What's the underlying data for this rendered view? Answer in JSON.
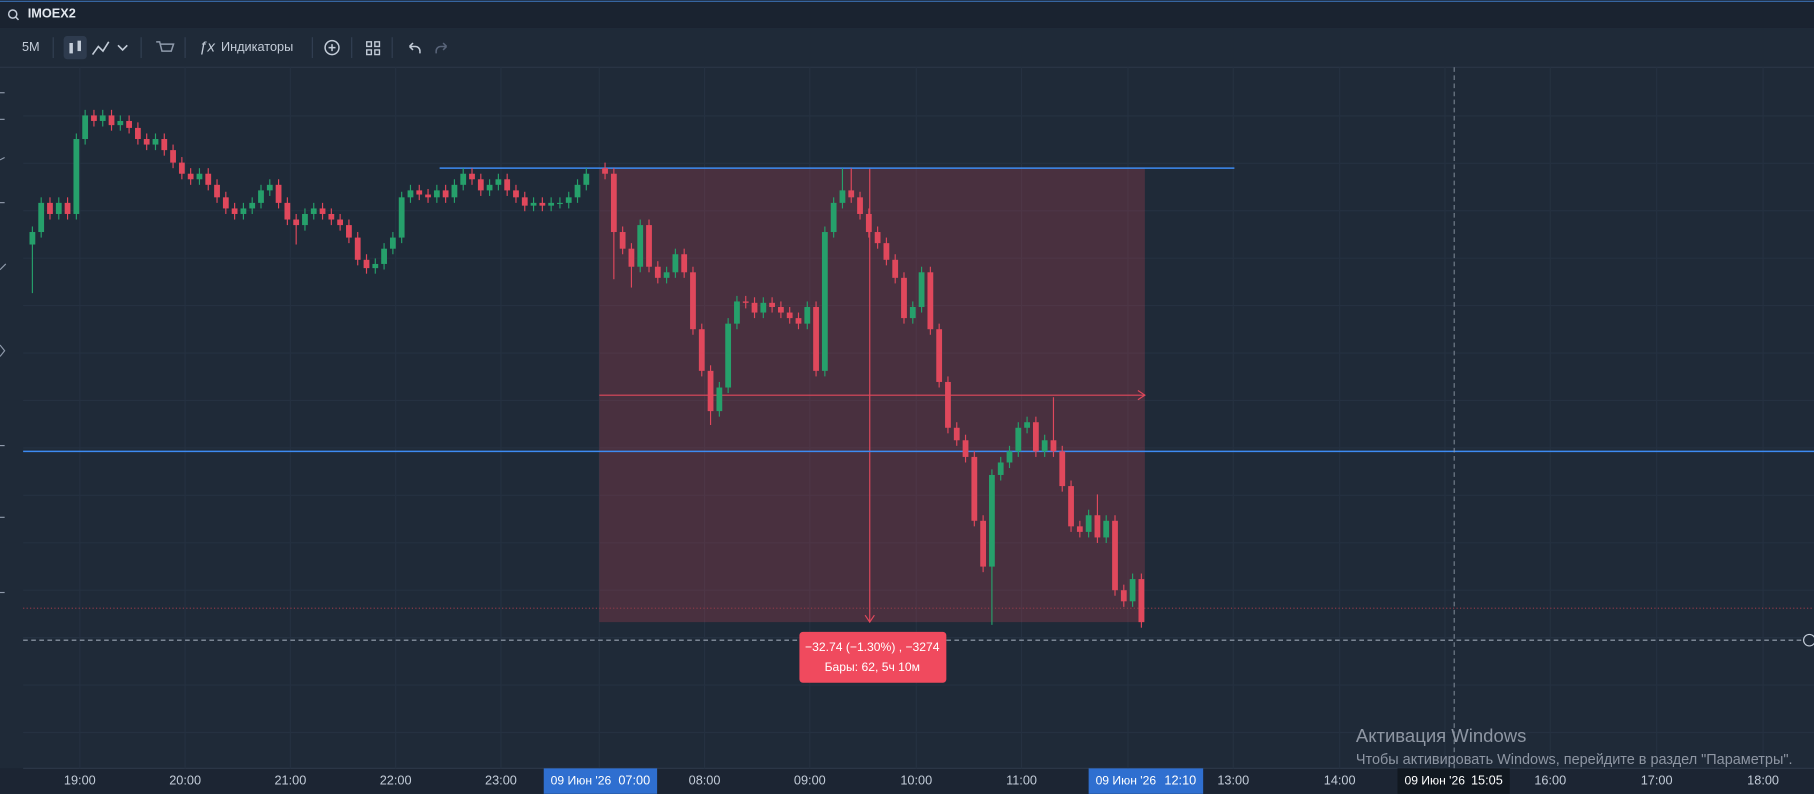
{
  "search": {
    "symbol": "IMOEX2"
  },
  "toolbar": {
    "interval": "5M",
    "indicators": "Индикаторы"
  },
  "chart_data": {
    "type": "candlestick",
    "up_color": "#26a06b",
    "down_color": "#e0485c",
    "sessions": [
      {
        "candles": [
          [
            2513.0,
            2514.3,
            2509.5,
            2513.9
          ],
          [
            2513.9,
            2516.4,
            2513.5,
            2516.0
          ],
          [
            2516.0,
            2516.4,
            2514.8,
            2515.2
          ],
          [
            2515.2,
            2516.4,
            2514.8,
            2516.0
          ],
          [
            2516.0,
            2516.4,
            2514.8,
            2515.2
          ],
          [
            2515.2,
            2521.0,
            2514.8,
            2520.6
          ],
          [
            2520.6,
            2522.7,
            2520.2,
            2522.3
          ],
          [
            2522.3,
            2522.7,
            2521.5,
            2521.9
          ],
          [
            2521.9,
            2522.7,
            2521.5,
            2522.3
          ],
          [
            2522.3,
            2522.7,
            2521.2,
            2521.6
          ],
          [
            2521.6,
            2522.3,
            2521.2,
            2521.9
          ],
          [
            2521.9,
            2522.3,
            2521.0,
            2521.4
          ],
          [
            2521.4,
            2521.8,
            2520.2,
            2520.6
          ],
          [
            2520.6,
            2521.0,
            2519.8,
            2520.2
          ],
          [
            2520.2,
            2521.0,
            2519.8,
            2520.6
          ],
          [
            2520.6,
            2521.0,
            2519.4,
            2519.8
          ],
          [
            2519.8,
            2520.2,
            2518.5,
            2518.9
          ],
          [
            2518.9,
            2519.3,
            2517.7,
            2518.1
          ],
          [
            2518.1,
            2518.5,
            2517.3,
            2517.7
          ],
          [
            2517.7,
            2518.5,
            2517.3,
            2518.1
          ],
          [
            2518.1,
            2518.5,
            2516.9,
            2517.3
          ],
          [
            2517.3,
            2517.7,
            2516.0,
            2516.4
          ],
          [
            2516.4,
            2516.8,
            2515.2,
            2515.6
          ],
          [
            2515.6,
            2516.0,
            2514.8,
            2515.2
          ],
          [
            2515.2,
            2516.0,
            2514.8,
            2515.6
          ],
          [
            2515.6,
            2516.4,
            2515.2,
            2516.0
          ],
          [
            2516.0,
            2517.3,
            2515.6,
            2516.9
          ],
          [
            2516.9,
            2517.7,
            2516.5,
            2517.3
          ],
          [
            2517.3,
            2517.7,
            2515.6,
            2516.0
          ],
          [
            2516.0,
            2516.4,
            2514.4,
            2514.8
          ],
          [
            2514.8,
            2515.2,
            2513.0,
            2514.4
          ],
          [
            2514.4,
            2515.6,
            2514.0,
            2515.2
          ],
          [
            2515.2,
            2516.0,
            2514.8,
            2515.6
          ],
          [
            2515.6,
            2516.0,
            2514.8,
            2515.2
          ],
          [
            2515.2,
            2515.6,
            2514.4,
            2514.8
          ],
          [
            2514.8,
            2515.2,
            2514.0,
            2514.4
          ],
          [
            2514.4,
            2514.8,
            2513.1,
            2513.5
          ],
          [
            2513.5,
            2513.9,
            2511.5,
            2511.9
          ],
          [
            2511.9,
            2512.3,
            2510.9,
            2511.3
          ],
          [
            2511.3,
            2512.0,
            2510.9,
            2511.6
          ],
          [
            2511.6,
            2513.1,
            2511.2,
            2512.7
          ],
          [
            2512.7,
            2513.9,
            2512.3,
            2513.5
          ],
          [
            2513.5,
            2516.8,
            2513.1,
            2516.4
          ],
          [
            2516.4,
            2517.3,
            2516.0,
            2516.9
          ],
          [
            2516.9,
            2517.3,
            2516.2,
            2516.6
          ],
          [
            2516.6,
            2517.0,
            2516.0,
            2516.4
          ],
          [
            2516.4,
            2517.3,
            2516.0,
            2516.9
          ],
          [
            2516.9,
            2517.3,
            2516.0,
            2516.4
          ],
          [
            2516.4,
            2517.7,
            2516.0,
            2517.3
          ],
          [
            2517.3,
            2518.5,
            2516.9,
            2518.1
          ],
          [
            2518.1,
            2518.5,
            2517.3,
            2517.7
          ],
          [
            2517.7,
            2518.1,
            2516.5,
            2516.9
          ],
          [
            2516.9,
            2517.7,
            2516.5,
            2517.3
          ],
          [
            2517.3,
            2518.1,
            2516.9,
            2517.7
          ],
          [
            2517.7,
            2518.1,
            2516.5,
            2516.9
          ],
          [
            2516.9,
            2517.3,
            2516.0,
            2516.4
          ],
          [
            2516.4,
            2516.8,
            2515.4,
            2515.8
          ],
          [
            2515.8,
            2516.4,
            2515.4,
            2516.0
          ],
          [
            2516.0,
            2516.4,
            2515.4,
            2515.8
          ],
          [
            2515.8,
            2516.4,
            2515.4,
            2516.0
          ],
          [
            2516.0,
            2516.4,
            2515.6,
            2516.0
          ],
          [
            2516.0,
            2516.8,
            2515.6,
            2516.4
          ],
          [
            2516.4,
            2517.7,
            2516.0,
            2517.3
          ],
          [
            2517.3,
            2518.5,
            2516.9,
            2518.1
          ]
        ]
      },
      {
        "candles": [
          [
            2518.5,
            2518.9,
            2517.7,
            2518.1
          ],
          [
            2518.1,
            2518.5,
            2510.5,
            2513.9
          ],
          [
            2513.9,
            2514.3,
            2512.3,
            2512.7
          ],
          [
            2512.7,
            2513.1,
            2509.9,
            2511.4
          ],
          [
            2511.4,
            2514.8,
            2511.0,
            2514.4
          ],
          [
            2514.4,
            2514.8,
            2511.0,
            2511.4
          ],
          [
            2511.4,
            2511.8,
            2510.2,
            2510.6
          ],
          [
            2510.6,
            2511.4,
            2510.2,
            2511.0
          ],
          [
            2511.0,
            2512.7,
            2510.6,
            2512.3
          ],
          [
            2512.3,
            2512.7,
            2510.6,
            2511.0
          ],
          [
            2511.0,
            2511.4,
            2506.5,
            2506.9
          ],
          [
            2506.9,
            2507.3,
            2503.5,
            2503.9
          ],
          [
            2503.9,
            2504.3,
            2500.0,
            2501.0
          ],
          [
            2501.0,
            2503.1,
            2500.6,
            2502.7
          ],
          [
            2502.7,
            2507.7,
            2502.3,
            2507.3
          ],
          [
            2507.3,
            2509.3,
            2506.9,
            2508.9
          ],
          [
            2508.9,
            2509.3,
            2508.4,
            2508.8
          ],
          [
            2508.8,
            2509.2,
            2507.7,
            2508.1
          ],
          [
            2508.1,
            2509.2,
            2507.7,
            2508.8
          ],
          [
            2508.8,
            2509.2,
            2508.1,
            2508.5
          ],
          [
            2508.5,
            2508.9,
            2507.7,
            2508.1
          ],
          [
            2508.1,
            2508.5,
            2507.3,
            2507.7
          ],
          [
            2507.7,
            2508.1,
            2506.9,
            2507.3
          ],
          [
            2507.3,
            2508.9,
            2506.9,
            2508.5
          ],
          [
            2508.5,
            2508.9,
            2503.5,
            2503.9
          ],
          [
            2503.9,
            2514.3,
            2503.5,
            2513.9
          ],
          [
            2513.9,
            2516.4,
            2513.5,
            2516.0
          ],
          [
            2516.0,
            2518.5,
            2515.6,
            2516.9
          ],
          [
            2516.9,
            2518.5,
            2516.0,
            2516.4
          ],
          [
            2516.4,
            2516.8,
            2514.8,
            2515.2
          ],
          [
            2515.2,
            2515.6,
            2513.5,
            2513.9
          ],
          [
            2513.9,
            2514.3,
            2512.7,
            2513.1
          ],
          [
            2513.1,
            2513.5,
            2511.5,
            2511.9
          ],
          [
            2511.9,
            2512.3,
            2510.2,
            2510.6
          ],
          [
            2510.6,
            2511.0,
            2507.3,
            2507.7
          ],
          [
            2507.7,
            2508.9,
            2507.3,
            2508.5
          ],
          [
            2508.5,
            2511.4,
            2508.1,
            2511.0
          ],
          [
            2511.0,
            2511.4,
            2506.5,
            2506.9
          ],
          [
            2506.9,
            2507.3,
            2502.7,
            2503.1
          ],
          [
            2503.1,
            2503.5,
            2499.4,
            2499.8
          ],
          [
            2499.8,
            2500.2,
            2498.5,
            2498.9
          ],
          [
            2498.9,
            2499.3,
            2497.3,
            2497.7
          ],
          [
            2497.7,
            2498.1,
            2492.7,
            2493.1
          ],
          [
            2493.1,
            2493.5,
            2489.4,
            2489.8
          ],
          [
            2489.8,
            2496.8,
            2485.6,
            2496.4
          ],
          [
            2496.4,
            2497.7,
            2496.0,
            2497.3
          ],
          [
            2497.3,
            2498.5,
            2496.9,
            2498.1
          ],
          [
            2498.1,
            2500.2,
            2497.7,
            2499.8
          ],
          [
            2499.8,
            2500.6,
            2499.4,
            2500.2
          ],
          [
            2500.2,
            2500.6,
            2497.7,
            2498.1
          ],
          [
            2498.1,
            2499.3,
            2497.7,
            2498.9
          ],
          [
            2498.9,
            2502.0,
            2497.7,
            2498.1
          ],
          [
            2498.1,
            2498.5,
            2495.2,
            2495.6
          ],
          [
            2495.6,
            2496.0,
            2492.3,
            2492.7
          ],
          [
            2492.7,
            2493.1,
            2491.9,
            2492.3
          ],
          [
            2492.3,
            2493.9,
            2491.9,
            2493.5
          ],
          [
            2493.5,
            2495.0,
            2491.5,
            2491.9
          ],
          [
            2491.9,
            2493.5,
            2491.5,
            2493.1
          ],
          [
            2493.1,
            2493.5,
            2487.7,
            2488.1
          ],
          [
            2488.1,
            2488.5,
            2486.9,
            2487.3
          ],
          [
            2487.3,
            2489.3,
            2486.9,
            2488.9
          ],
          [
            2488.9,
            2489.3,
            2485.4,
            2485.8
          ]
        ]
      }
    ],
    "hlines": [
      2518.5,
      2498.1
    ],
    "hline_color": "#3d8bf2",
    "last_price": 2486.8,
    "crosshair_price": 2484.5,
    "measure": {
      "from": 2518.5,
      "to": 2485.8,
      "change": "−32.74 (−1.30%) , −3274",
      "bars": "Бары: 62, 5ч 10м"
    },
    "time_labels": [
      "19:00",
      "20:00",
      "21:00",
      "22:00",
      "23:00",
      "08:00",
      "09:00",
      "10:00",
      "11:00",
      "13:00",
      "14:00",
      "16:00",
      "17:00",
      "18:00"
    ],
    "time_tags": [
      {
        "date": "09 Июн '26",
        "time": "07:00"
      },
      {
        "date": "09 Июн '26",
        "time": "12:10"
      },
      {
        "date": "09 Июн '26",
        "time": "15:05"
      }
    ]
  },
  "watermark": {
    "title": "Активация Windows",
    "text": "Чтобы активировать Windows, перейдите в раздел \"Параметры\"."
  }
}
